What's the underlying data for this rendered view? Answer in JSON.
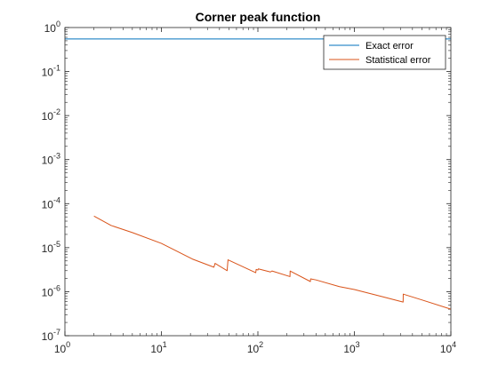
{
  "chart_data": {
    "type": "line",
    "title": "Corner peak function",
    "xlabel": "",
    "ylabel": "",
    "xscale": "log",
    "yscale": "log",
    "xlim": [
      1,
      10000
    ],
    "ylim": [
      1e-07,
      1
    ],
    "grid": false,
    "legend_position": "top-right",
    "x_ticks": [
      {
        "base": "10",
        "exp": "0"
      },
      {
        "base": "10",
        "exp": "1"
      },
      {
        "base": "10",
        "exp": "2"
      },
      {
        "base": "10",
        "exp": "3"
      },
      {
        "base": "10",
        "exp": "4"
      }
    ],
    "y_ticks": [
      {
        "base": "10",
        "exp": "0"
      },
      {
        "base": "10",
        "exp": "-1"
      },
      {
        "base": "10",
        "exp": "-2"
      },
      {
        "base": "10",
        "exp": "-3"
      },
      {
        "base": "10",
        "exp": "-4"
      },
      {
        "base": "10",
        "exp": "-5"
      },
      {
        "base": "10",
        "exp": "-6"
      },
      {
        "base": "10",
        "exp": "-7"
      }
    ],
    "series": [
      {
        "name": "Exact error",
        "color": "#0072bd",
        "x": [
          1,
          10000
        ],
        "y": [
          0.55,
          0.55
        ]
      },
      {
        "name": "Statistical error",
        "color": "#d95319",
        "x": [
          2,
          3,
          5,
          10,
          20,
          21,
          35,
          36,
          48,
          49,
          95,
          96,
          100,
          101,
          135,
          140,
          215,
          216,
          350,
          352,
          400,
          700,
          1000,
          2000,
          3200,
          3210,
          5000,
          10000
        ],
        "y": [
          5.2e-05,
          3.2e-05,
          2.2e-05,
          1.25e-05,
          5.8e-06,
          5.5e-06,
          3.6e-06,
          4.4e-06,
          3e-06,
          5.3e-06,
          2.7e-06,
          3.2e-06,
          3.1e-06,
          3.3e-06,
          2.8e-06,
          2.95e-06,
          2.2e-06,
          2.95e-06,
          1.7e-06,
          1.95e-06,
          1.85e-06,
          1.3e-06,
          1.12e-06,
          7.6e-07,
          5.8e-07,
          8.8e-07,
          6.5e-07,
          4e-07
        ]
      }
    ]
  }
}
